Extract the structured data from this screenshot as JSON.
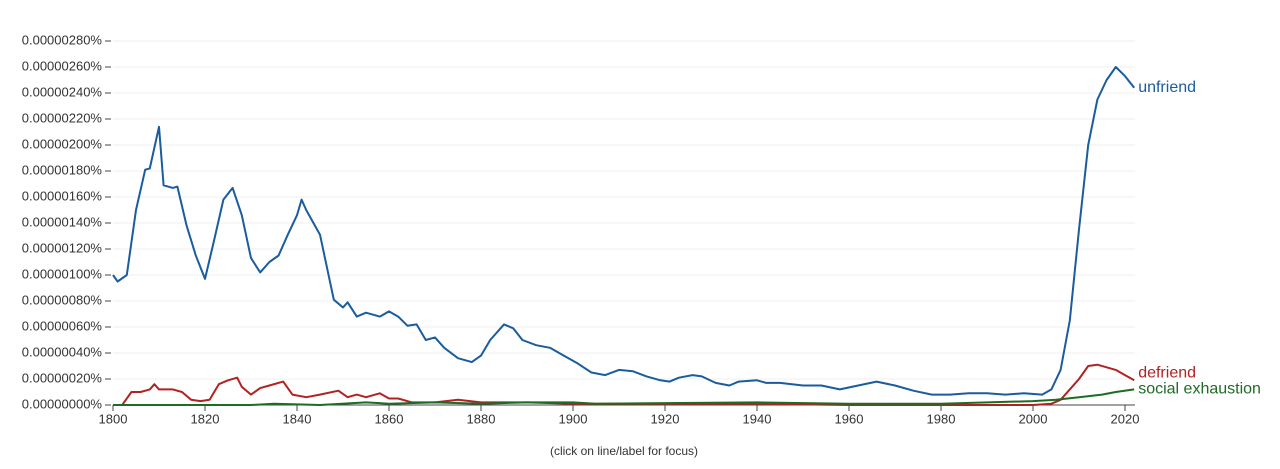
{
  "chart_data": {
    "type": "line",
    "footer": "(click on line/label for focus)",
    "xlim": [
      1800,
      2020
    ],
    "xticks": [
      1800,
      1820,
      1840,
      1860,
      1880,
      1900,
      1920,
      1940,
      1960,
      1980,
      2000,
      2020
    ],
    "ylim": [
      0,
      2.8e-06
    ],
    "yticks": [
      {
        "value": 0,
        "label": "0.00000000%"
      },
      {
        "value": 2e-07,
        "label": "0.00000020%"
      },
      {
        "value": 4e-07,
        "label": "0.00000040%"
      },
      {
        "value": 6e-07,
        "label": "0.00000060%"
      },
      {
        "value": 8e-07,
        "label": "0.00000080%"
      },
      {
        "value": 1e-06,
        "label": "0.00000100%"
      },
      {
        "value": 1.2e-06,
        "label": "0.00000120%"
      },
      {
        "value": 1.4e-06,
        "label": "0.00000140%"
      },
      {
        "value": 1.6e-06,
        "label": "0.00000160%"
      },
      {
        "value": 1.8e-06,
        "label": "0.00000180%"
      },
      {
        "value": 2e-06,
        "label": "0.00000200%"
      },
      {
        "value": 2.2e-06,
        "label": "0.00000220%"
      },
      {
        "value": 2.4e-06,
        "label": "0.00000240%"
      },
      {
        "value": 2.6e-06,
        "label": "0.00000260%"
      },
      {
        "value": 2.8e-06,
        "label": "0.00000280%"
      }
    ],
    "grid": true,
    "series": [
      {
        "name": "unfriend",
        "color": "#1a5c9e",
        "x": [
          1800,
          1801,
          1803,
          1805,
          1807,
          1808,
          1810,
          1811,
          1813,
          1814,
          1816,
          1818,
          1820,
          1822,
          1824,
          1826,
          1828,
          1830,
          1832,
          1834,
          1836,
          1838,
          1840,
          1841,
          1842,
          1845,
          1848,
          1850,
          1851,
          1853,
          1855,
          1858,
          1860,
          1862,
          1864,
          1866,
          1868,
          1870,
          1872,
          1875,
          1878,
          1880,
          1882,
          1885,
          1887,
          1889,
          1892,
          1895,
          1898,
          1901,
          1904,
          1907,
          1910,
          1913,
          1916,
          1919,
          1921,
          1923,
          1926,
          1928,
          1931,
          1934,
          1936,
          1940,
          1942,
          1945,
          1950,
          1954,
          1958,
          1962,
          1966,
          1970,
          1974,
          1978,
          1982,
          1986,
          1990,
          1994,
          1998,
          2002,
          2004,
          2006,
          2008,
          2010,
          2012,
          2014,
          2016,
          2018,
          2020,
          2022
        ],
        "values": [
          1e-06,
          9.5e-07,
          1e-06,
          1.5e-06,
          1.81e-06,
          1.82e-06,
          2.14e-06,
          1.69e-06,
          1.67e-06,
          1.68e-06,
          1.38e-06,
          1.15e-06,
          9.7e-07,
          1.27e-06,
          1.58e-06,
          1.67e-06,
          1.46e-06,
          1.13e-06,
          1.02e-06,
          1.1e-06,
          1.15e-06,
          1.31e-06,
          1.46e-06,
          1.58e-06,
          1.5e-06,
          1.31e-06,
          8.1e-07,
          7.5e-07,
          7.9e-07,
          6.8e-07,
          7.1e-07,
          6.8e-07,
          7.2e-07,
          6.8e-07,
          6.1e-07,
          6.2e-07,
          5e-07,
          5.2e-07,
          4.4e-07,
          3.6e-07,
          3.3e-07,
          3.8e-07,
          5e-07,
          6.2e-07,
          5.9e-07,
          5e-07,
          4.6e-07,
          4.4e-07,
          3.8e-07,
          3.2e-07,
          2.5e-07,
          2.3e-07,
          2.7e-07,
          2.6e-07,
          2.2e-07,
          1.9e-07,
          1.8e-07,
          2.1e-07,
          2.3e-07,
          2.2e-07,
          1.7e-07,
          1.5e-07,
          1.8e-07,
          1.9e-07,
          1.7e-07,
          1.7e-07,
          1.5e-07,
          1.5e-07,
          1.2e-07,
          1.5e-07,
          1.8e-07,
          1.5e-07,
          1.1e-07,
          8e-08,
          8e-08,
          9e-08,
          9e-08,
          8e-08,
          9e-08,
          8e-08,
          1.2e-07,
          2.7e-07,
          6.5e-07,
          1.35e-06,
          2e-06,
          2.35e-06,
          2.5e-06,
          2.6e-06,
          2.53e-06,
          2.44e-06
        ]
      },
      {
        "name": "defriend",
        "color": "#b22222",
        "x": [
          1800,
          1802,
          1804,
          1806,
          1808,
          1809,
          1810,
          1813,
          1815,
          1817,
          1819,
          1821,
          1823,
          1825,
          1827,
          1828,
          1830,
          1832,
          1834,
          1837,
          1839,
          1842,
          1845,
          1849,
          1851,
          1853,
          1855,
          1858,
          1860,
          1862,
          1865,
          1870,
          1875,
          1880,
          1885,
          1890,
          1900,
          1920,
          1940,
          1960,
          1980,
          1990,
          2000,
          2004,
          2006,
          2008,
          2010,
          2012,
          2014,
          2016,
          2018,
          2020,
          2022
        ],
        "values": [
          0,
          0,
          1e-07,
          1e-07,
          1.2e-07,
          1.6e-07,
          1.2e-07,
          1.2e-07,
          1e-07,
          4e-08,
          3e-08,
          4e-08,
          1.6e-07,
          1.9e-07,
          2.1e-07,
          1.4e-07,
          8e-08,
          1.3e-07,
          1.5e-07,
          1.8e-07,
          8e-08,
          6e-08,
          8e-08,
          1.1e-07,
          6e-08,
          8e-08,
          6e-08,
          9e-08,
          5e-08,
          5e-08,
          2e-08,
          2e-08,
          4e-08,
          2e-08,
          2e-08,
          2e-08,
          1e-08,
          1e-08,
          1e-08,
          0,
          0,
          0,
          0,
          1e-08,
          4e-08,
          1.2e-07,
          2e-07,
          3e-07,
          3.1e-07,
          2.9e-07,
          2.7e-07,
          2.3e-07,
          1.9e-07
        ]
      },
      {
        "name": "social exhaustion",
        "color": "#1e6b24",
        "x": [
          1800,
          1830,
          1835,
          1845,
          1855,
          1860,
          1870,
          1880,
          1890,
          1900,
          1905,
          1940,
          1960,
          1980,
          2000,
          2005,
          2010,
          2015,
          2018,
          2022
        ],
        "values": [
          0,
          0,
          1e-08,
          0,
          2e-08,
          1e-08,
          2e-08,
          1e-08,
          2e-08,
          2e-08,
          1e-08,
          2e-08,
          1e-08,
          1e-08,
          3e-08,
          4e-08,
          6e-08,
          8e-08,
          1e-07,
          1.2e-07
        ]
      }
    ]
  }
}
